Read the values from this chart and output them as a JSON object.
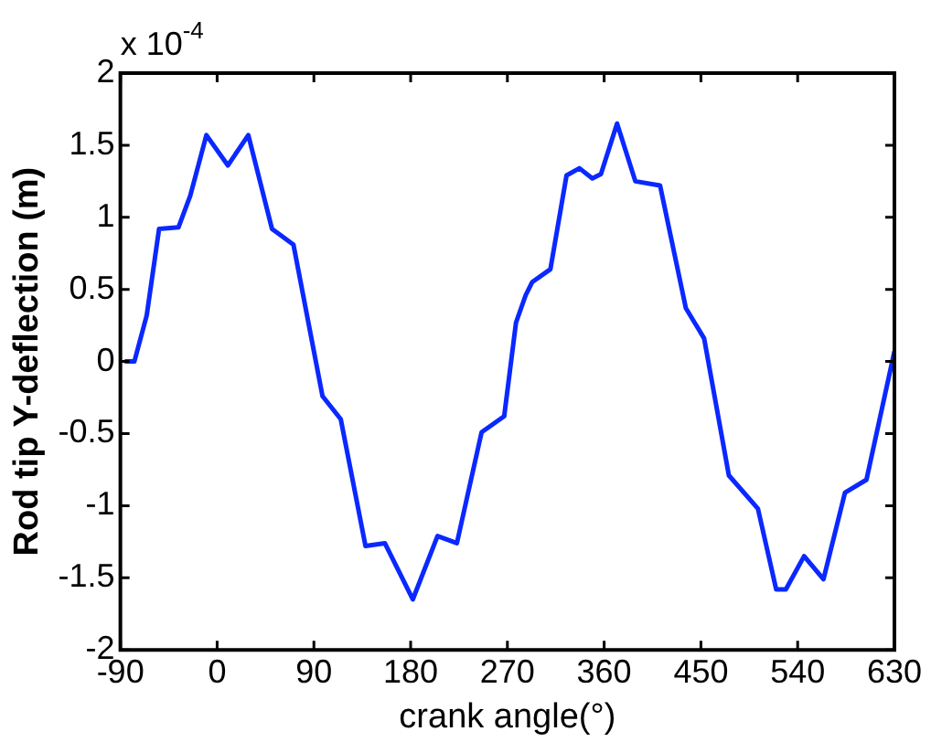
{
  "chart_data": {
    "type": "line",
    "xlabel": "crank angle(°)",
    "ylabel": "Rod tip Y-deflection (m)",
    "annotations": [
      "x 10$^{-4}$"
    ],
    "series": [
      {
        "color": "#0a28ff",
        "x": [
          -86,
          -77,
          -65.5,
          -54,
          -36,
          -25,
          -10,
          10,
          29,
          51,
          71,
          98,
          115,
          138,
          156,
          182,
          205,
          223,
          246,
          267,
          278,
          287,
          293,
          310,
          325,
          337,
          349,
          357,
          372,
          389,
          412,
          436,
          453,
          476,
          503,
          520,
          529,
          546,
          564,
          584,
          604,
          630
        ],
        "values": [
          0,
          0,
          0.32,
          0.92,
          0.93,
          1.15,
          1.57,
          1.36,
          1.57,
          0.92,
          0.81,
          -0.24,
          -0.4,
          -1.28,
          -1.26,
          -1.65,
          -1.21,
          -1.26,
          -0.49,
          -0.38,
          0.27,
          0.46,
          0.55,
          0.64,
          1.29,
          1.34,
          1.27,
          1.3,
          1.65,
          1.25,
          1.22,
          0.37,
          0.16,
          -0.79,
          -1.02,
          -1.58,
          -1.58,
          -1.35,
          -1.51,
          -0.91,
          -0.82,
          0.07
        ]
      }
    ],
    "xlim": [
      -90,
      630
    ],
    "xticks": [
      -90,
      0,
      90,
      180,
      270,
      360,
      450,
      540,
      630
    ],
    "ylim": [
      -2,
      2
    ],
    "yticks": [
      -2,
      -1.5,
      -1,
      -0.5,
      0,
      0.5,
      1,
      1.5,
      2
    ],
    "grid": false,
    "legend": false,
    "marker": "none",
    "line_style": "solid"
  }
}
